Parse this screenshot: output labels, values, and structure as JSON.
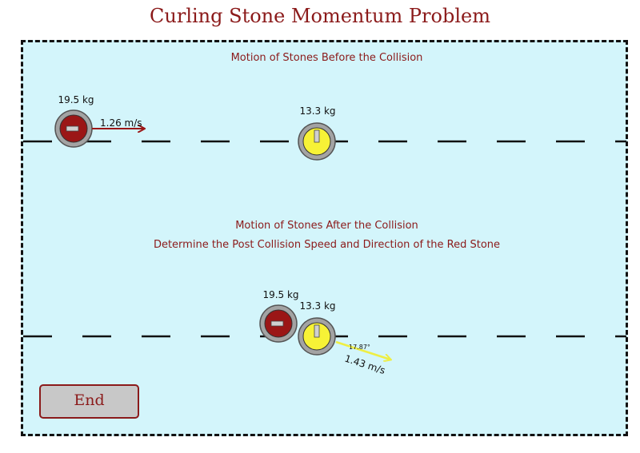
{
  "title": "Curling Stone Momentum Problem",
  "before": {
    "heading": "Motion of Stones Before the Collision",
    "red_stone": {
      "mass_label": "19.5 kg",
      "velocity_label": "1.26 m/s",
      "color": "#9b1616"
    },
    "yellow_stone": {
      "mass_label": "13.3 kg",
      "color": "#f7f236"
    }
  },
  "after": {
    "heading": "Motion of Stones After the Collision",
    "subheading": "Determine the Post Collision Speed and Direction of the Red Stone",
    "red_stone": {
      "mass_label": "19.5 kg",
      "color": "#9b1616"
    },
    "yellow_stone": {
      "mass_label": "13.3 kg",
      "velocity_label": "1.43 m/s",
      "angle_label": "17.87°",
      "color": "#f7f236"
    }
  },
  "controls": {
    "end_label": "End"
  },
  "colors": {
    "accent": "#8b1a1a",
    "ice": "#d3f5fb",
    "stone_rim": "#9e9e9e"
  }
}
